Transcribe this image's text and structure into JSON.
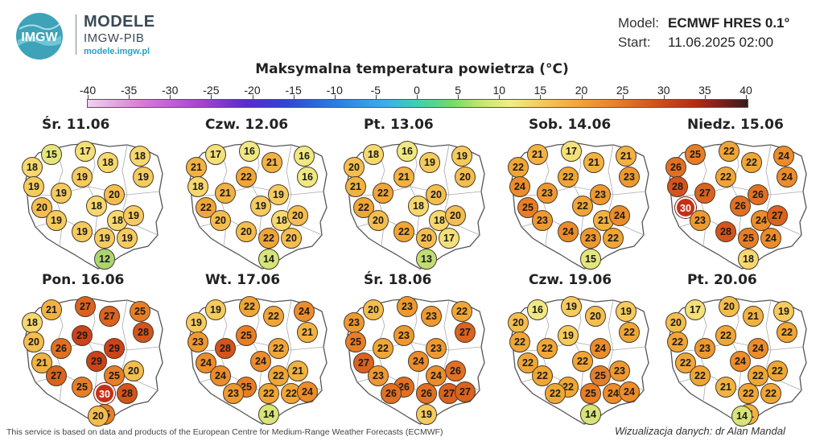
{
  "brand": {
    "title": "MODELE",
    "subtitle": "IMGW-PIB",
    "url": "modele.imgw.pl",
    "logo_text": "IMGW"
  },
  "meta": {
    "model_label": "Model:",
    "model_value": "ECMWF HRES 0.1°",
    "start_label": "Start:",
    "start_value": "11.06.2025 02:00"
  },
  "title": "Maksymalna temperatura powietrza (°C)",
  "legend": {
    "ticks": [
      "-40",
      "-35",
      "-30",
      "-25",
      "-20",
      "-15",
      "-10",
      "-5",
      "0",
      "5",
      "10",
      "15",
      "20",
      "25",
      "30",
      "35",
      "40"
    ]
  },
  "days": [
    {
      "label": "Śr. 11.06",
      "values": [
        15,
        17,
        18,
        18,
        18,
        19,
        19,
        19,
        19,
        20,
        20,
        18,
        18,
        19,
        19,
        19,
        19,
        19,
        12
      ]
    },
    {
      "label": "Czw. 12.06",
      "values": [
        17,
        16,
        16,
        21,
        21,
        16,
        18,
        21,
        22,
        19,
        22,
        19,
        18,
        20,
        20,
        20,
        22,
        20,
        14
      ]
    },
    {
      "label": "Pt. 13.06",
      "values": [
        18,
        16,
        19,
        20,
        19,
        20,
        21,
        22,
        21,
        20,
        22,
        18,
        18,
        20,
        20,
        22,
        20,
        17,
        13
      ]
    },
    {
      "label": "Sob. 14.06",
      "values": [
        21,
        17,
        21,
        22,
        21,
        23,
        24,
        23,
        22,
        23,
        25,
        22,
        21,
        23,
        24,
        24,
        23,
        22,
        15
      ]
    },
    {
      "label": "Niedz. 15.06",
      "values": [
        25,
        22,
        24,
        26,
        22,
        24,
        28,
        27,
        22,
        26,
        30,
        26,
        24,
        23,
        27,
        28,
        25,
        24,
        18
      ]
    },
    {
      "label": "Pon. 16.06",
      "values": [
        21,
        27,
        27,
        25,
        18,
        29,
        28,
        20,
        26,
        29,
        21,
        29,
        20,
        27,
        25,
        25,
        30,
        28,
        25,
        20
      ]
    },
    {
      "label": "Wt. 17.06",
      "values": [
        19,
        22,
        22,
        24,
        19,
        25,
        21,
        23,
        28,
        22,
        24,
        24,
        21,
        24,
        22,
        25,
        22,
        22,
        24,
        23,
        14
      ]
    },
    {
      "label": "Śr. 18.06",
      "values": [
        20,
        23,
        23,
        22,
        23,
        23,
        27,
        25,
        22,
        23,
        27,
        24,
        26,
        23,
        24,
        26,
        26,
        27,
        27,
        26,
        19
      ]
    },
    {
      "label": "Czw. 19.06",
      "values": [
        16,
        19,
        20,
        19,
        20,
        19,
        22,
        22,
        22,
        24,
        22,
        22,
        23,
        22,
        25,
        22,
        25,
        24,
        24,
        22,
        14
      ]
    },
    {
      "label": "Pt. 20.06",
      "values": [
        17,
        20,
        21,
        19,
        20,
        22,
        22,
        22,
        23,
        24,
        22,
        24,
        22,
        22,
        22,
        21,
        22,
        22,
        21,
        14
      ]
    }
  ],
  "colors": {
    "scale_min": -40,
    "scale_max": 40
  },
  "footer": {
    "left": "This service is based on data and products of the European Centre for Medium-Range Weather Forecasts (ECMWF)",
    "right": "Wizualizacja danych: dr Alan Mandal"
  }
}
